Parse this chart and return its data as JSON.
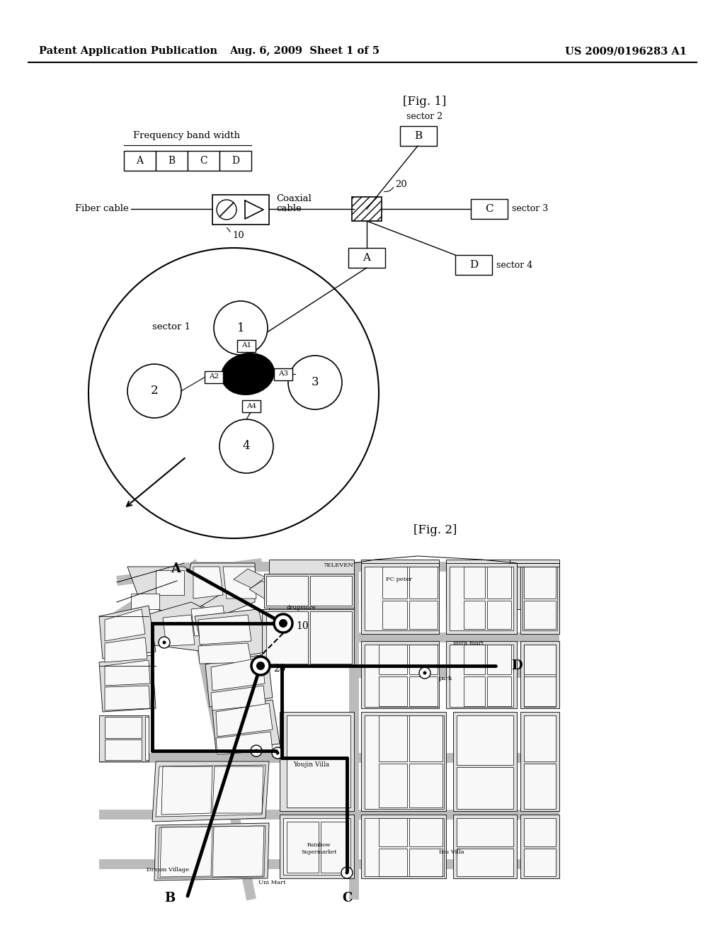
{
  "header_left": "Patent Application Publication",
  "header_mid": "Aug. 6, 2009  Sheet 1 of 5",
  "header_right": "US 2009/0196283 A1",
  "fig1_label": "[Fig. 1]",
  "fig2_label": "[Fig. 2]",
  "freq_label": "Frequency band width",
  "freq_boxes": [
    "A",
    "B",
    "C",
    "D"
  ],
  "fiber_label": "Fiber cable",
  "coax_label": "Coaxial\ncable",
  "bg_color": "#ffffff"
}
